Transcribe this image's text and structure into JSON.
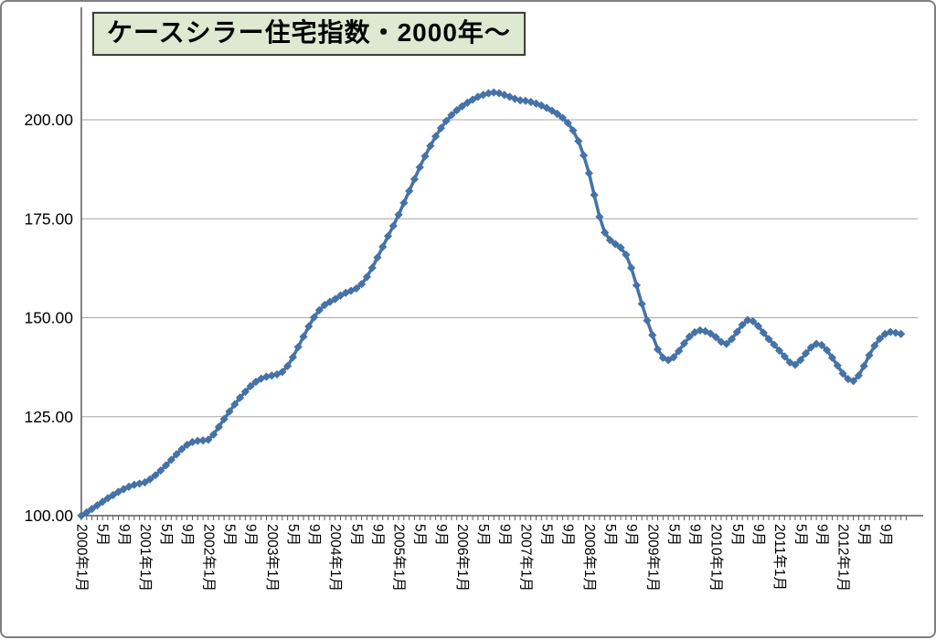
{
  "chart_data": {
    "type": "line",
    "title": "ケースシラー住宅指数・2000年～",
    "x_start": "2000年1月",
    "x_end": "2012年12月",
    "x_tick_labels": [
      "2000年1月",
      "5月",
      "9月",
      "2001年1月",
      "5月",
      "9月",
      "2002年1月",
      "5月",
      "9月",
      "2003年1月",
      "5月",
      "9月",
      "2004年1月",
      "5月",
      "9月",
      "2005年1月",
      "5月",
      "9月",
      "2006年1月",
      "5月",
      "9月",
      "2007年1月",
      "5月",
      "9月",
      "2008年1月",
      "5月",
      "9月",
      "2009年1月",
      "5月",
      "9月",
      "2010年1月",
      "5月",
      "9月",
      "2011年1月",
      "5月",
      "9月",
      "2012年1月",
      "5月",
      "9月"
    ],
    "x_label_step_months": 4,
    "y_tick_labels": [
      "100.00",
      "125.00",
      "150.00",
      "175.00",
      "200.00"
    ],
    "y_tick_values": [
      100,
      125,
      150,
      175,
      200
    ],
    "ylim": [
      100,
      216
    ],
    "grid": true,
    "legend": "none",
    "marker": "diamond",
    "line_color": "#4572a7",
    "grid_color": "#a6a6a6",
    "axis_color": "#595959",
    "title_fill": "#dfe8d0",
    "values": [
      100.0,
      100.8,
      101.7,
      102.6,
      103.5,
      104.4,
      105.2,
      106.0,
      106.7,
      107.3,
      107.8,
      108.1,
      108.4,
      109.2,
      110.2,
      111.4,
      112.7,
      114.1,
      115.5,
      116.8,
      117.9,
      118.6,
      118.9,
      119.0,
      119.2,
      120.5,
      122.4,
      124.4,
      126.3,
      128.1,
      129.8,
      131.3,
      132.7,
      133.8,
      134.6,
      135.1,
      135.4,
      135.7,
      136.3,
      137.8,
      140.0,
      142.6,
      145.2,
      147.8,
      150.1,
      151.9,
      153.2,
      154.0,
      154.7,
      155.6,
      156.3,
      156.8,
      157.4,
      158.5,
      160.3,
      162.6,
      165.2,
      167.9,
      170.6,
      173.2,
      176.0,
      179.0,
      182.0,
      185.0,
      188.0,
      190.8,
      193.4,
      195.8,
      197.9,
      199.7,
      201.2,
      202.4,
      203.4,
      204.3,
      205.1,
      205.8,
      206.3,
      206.7,
      206.9,
      206.7,
      206.3,
      205.8,
      205.3,
      204.9,
      204.8,
      204.5,
      204.1,
      203.6,
      203.0,
      202.3,
      201.5,
      200.5,
      199.2,
      197.3,
      194.6,
      191.0,
      186.5,
      181.0,
      175.5,
      171.5,
      169.6,
      168.6,
      167.7,
      165.9,
      162.6,
      158.2,
      153.5,
      149.3,
      145.6,
      142.0,
      139.9,
      139.3,
      140.0,
      141.6,
      143.5,
      145.2,
      146.3,
      146.8,
      146.6,
      146.0,
      145.1,
      143.9,
      143.4,
      144.6,
      146.4,
      148.2,
      149.4,
      149.1,
      147.9,
      146.2,
      144.6,
      143.2,
      141.7,
      140.2,
      138.7,
      138.1,
      139.3,
      141.0,
      142.5,
      143.4,
      143.1,
      141.8,
      139.9,
      137.9,
      135.9,
      134.5,
      134.0,
      135.4,
      137.8,
      140.5,
      142.9,
      144.7,
      145.9,
      146.4,
      146.2,
      145.9
    ]
  }
}
